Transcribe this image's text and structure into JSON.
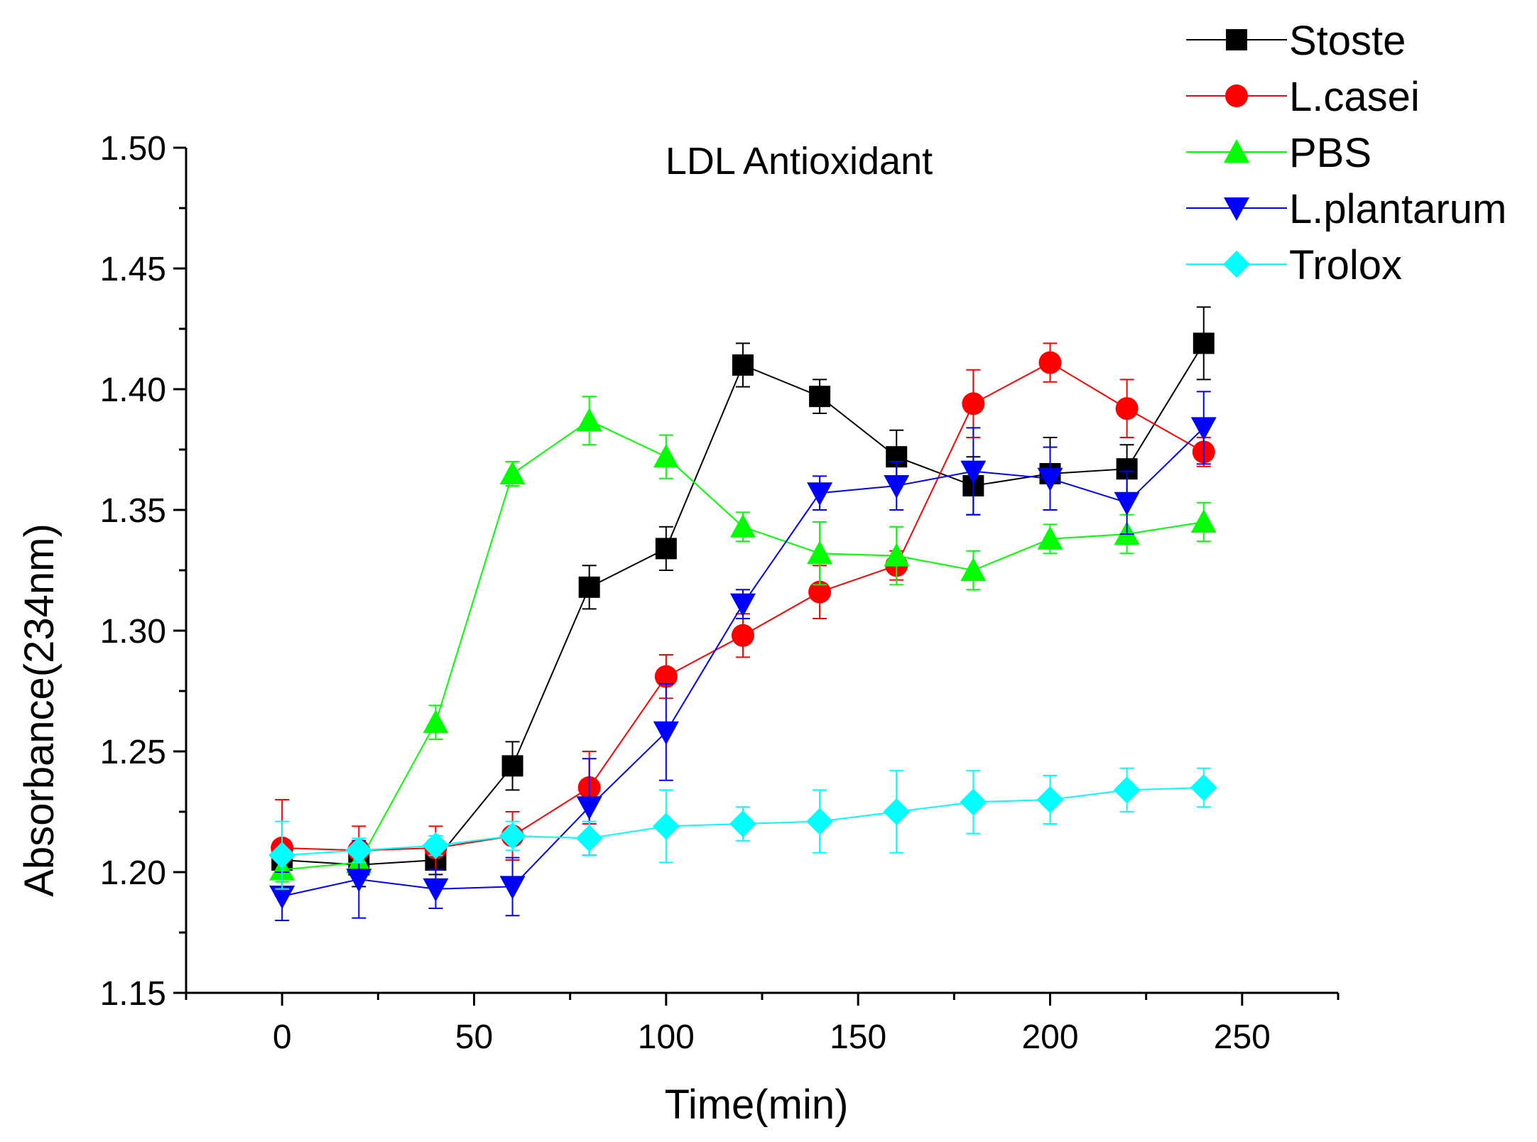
{
  "chart_data": {
    "type": "line",
    "title": "LDL Antioxidant",
    "xlabel": "Time(min)",
    "ylabel": "Absorbance(234nm)",
    "xlim": [
      -25,
      275
    ],
    "ylim": [
      1.15,
      1.5
    ],
    "x_ticks": [
      0,
      50,
      100,
      150,
      200,
      250
    ],
    "x_tick_labels": [
      "0",
      "50",
      "100",
      "150",
      "200",
      "250"
    ],
    "y_ticks": [
      1.15,
      1.2,
      1.25,
      1.3,
      1.35,
      1.4,
      1.45,
      1.5
    ],
    "y_tick_labels": [
      "1.15",
      "1.20",
      "1.25",
      "1.30",
      "1.35",
      "1.40",
      "1.45",
      "1.50"
    ],
    "grid": false,
    "legend_position": "top-right",
    "x": [
      0,
      20,
      40,
      60,
      80,
      100,
      120,
      140,
      160,
      180,
      200,
      220,
      240
    ],
    "series": [
      {
        "name": "Stoste",
        "color": "#000000",
        "marker": "square",
        "values": [
          1.205,
          1.203,
          1.205,
          1.244,
          1.318,
          1.334,
          1.41,
          1.397,
          1.372,
          1.36,
          1.365,
          1.367,
          1.419
        ],
        "errors": [
          0.008,
          0.009,
          0.006,
          0.01,
          0.009,
          0.009,
          0.009,
          0.007,
          0.011,
          0.012,
          0.015,
          0.01,
          0.015
        ]
      },
      {
        "name": "L.casei",
        "color": "#ff0000",
        "marker": "circle",
        "values": [
          1.21,
          1.209,
          1.21,
          1.215,
          1.235,
          1.281,
          1.298,
          1.316,
          1.327,
          1.394,
          1.411,
          1.392,
          1.374
        ],
        "errors": [
          0.02,
          0.01,
          0.009,
          0.01,
          0.015,
          0.009,
          0.009,
          0.011,
          0.006,
          0.014,
          0.008,
          0.012,
          0.006
        ]
      },
      {
        "name": "PBS",
        "color": "#00ff00",
        "marker": "triangle-up",
        "values": [
          1.201,
          1.204,
          1.262,
          1.365,
          1.387,
          1.372,
          1.343,
          1.332,
          1.331,
          1.325,
          1.338,
          1.34,
          1.345
        ],
        "errors": [
          0.005,
          0.006,
          0.007,
          0.005,
          0.01,
          0.009,
          0.006,
          0.013,
          0.012,
          0.008,
          0.006,
          0.008,
          0.008
        ]
      },
      {
        "name": "L.plantarum",
        "color": "#0000ff",
        "marker": "triangle-down",
        "values": [
          1.19,
          1.197,
          1.193,
          1.194,
          1.227,
          1.258,
          1.311,
          1.357,
          1.36,
          1.366,
          1.363,
          1.353,
          1.384
        ],
        "errors": [
          0.01,
          0.016,
          0.008,
          0.012,
          0.02,
          0.02,
          0.006,
          0.007,
          0.01,
          0.018,
          0.013,
          0.013,
          0.015
        ]
      },
      {
        "name": "Trolox",
        "color": "#00ffff",
        "marker": "diamond",
        "values": [
          1.207,
          1.209,
          1.211,
          1.215,
          1.214,
          1.219,
          1.22,
          1.221,
          1.225,
          1.229,
          1.23,
          1.234,
          1.235
        ],
        "errors": [
          0.014,
          0.005,
          0.004,
          0.006,
          0.007,
          0.015,
          0.007,
          0.013,
          0.017,
          0.013,
          0.01,
          0.009,
          0.008
        ]
      }
    ]
  }
}
